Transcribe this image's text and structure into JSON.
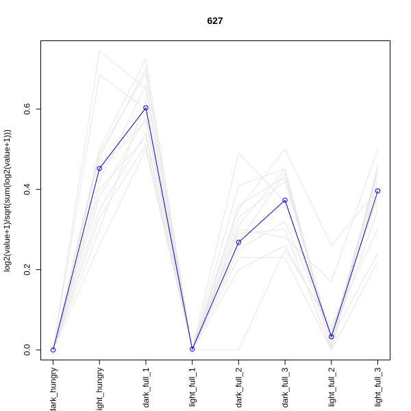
{
  "chart_data": {
    "type": "line",
    "title": "627",
    "xlabel": "",
    "ylabel": "log2(value+1)/sqrt(sum(log2(value+1)))",
    "categories": [
      "dark_hungry",
      "light_hungry",
      "dark_full_1",
      "light_full_1",
      "dark_full_2",
      "dark_full_3",
      "light_full_2",
      "light_full_3"
    ],
    "ylim": [
      -0.025,
      0.77
    ],
    "yticks": [
      0.0,
      0.2,
      0.4,
      0.6
    ],
    "ytick_labels": [
      "0.0",
      "0.2",
      "0.4",
      "0.6"
    ],
    "grid": false,
    "colors": {
      "highlight": "#0000ff",
      "background": "#e6e6e6"
    },
    "series": [
      {
        "values": [
          0.0,
          0.452,
          0.603,
          0.002,
          0.268,
          0.373,
          0.033,
          0.396
        ],
        "highlight": true
      },
      {
        "values": [
          0.0,
          0.745,
          0.65,
          0.0,
          0.31,
          0.45,
          0.02,
          0.44
        ]
      },
      {
        "values": [
          0.0,
          0.685,
          0.6,
          0.0,
          0.49,
          0.37,
          0.01,
          0.46
        ]
      },
      {
        "values": [
          0.0,
          0.5,
          0.725,
          0.0,
          0.41,
          0.45,
          0.0,
          0.45
        ]
      },
      {
        "values": [
          0.0,
          0.48,
          0.7,
          0.0,
          0.35,
          0.5,
          0.26,
          0.4
        ]
      },
      {
        "values": [
          0.0,
          0.42,
          0.66,
          0.0,
          0.3,
          0.28,
          0.17,
          0.5
        ]
      },
      {
        "values": [
          0.0,
          0.38,
          0.58,
          0.0,
          0.23,
          0.23,
          0.0,
          0.22
        ]
      },
      {
        "values": [
          0.0,
          0.35,
          0.54,
          0.0,
          0.25,
          0.32,
          0.04,
          0.42
        ]
      },
      {
        "values": [
          0.0,
          0.3,
          0.62,
          0.0,
          0.33,
          0.42,
          0.03,
          0.24
        ]
      },
      {
        "values": [
          0.0,
          0.26,
          0.5,
          0.0,
          0.2,
          0.26,
          0.05,
          0.38
        ]
      },
      {
        "values": [
          0.0,
          0.4,
          0.53,
          0.0,
          0.27,
          0.44,
          0.02,
          0.35
        ]
      },
      {
        "values": [
          0.0,
          0.45,
          0.57,
          0.0,
          0.29,
          0.3,
          0.0,
          0.42
        ]
      },
      {
        "values": [
          0.0,
          0.33,
          0.51,
          0.0,
          0.0,
          0.25,
          0.06,
          0.3
        ]
      },
      {
        "values": [
          0.0,
          0.49,
          0.69,
          0.0,
          0.36,
          0.43,
          0.03,
          0.45
        ]
      }
    ]
  }
}
